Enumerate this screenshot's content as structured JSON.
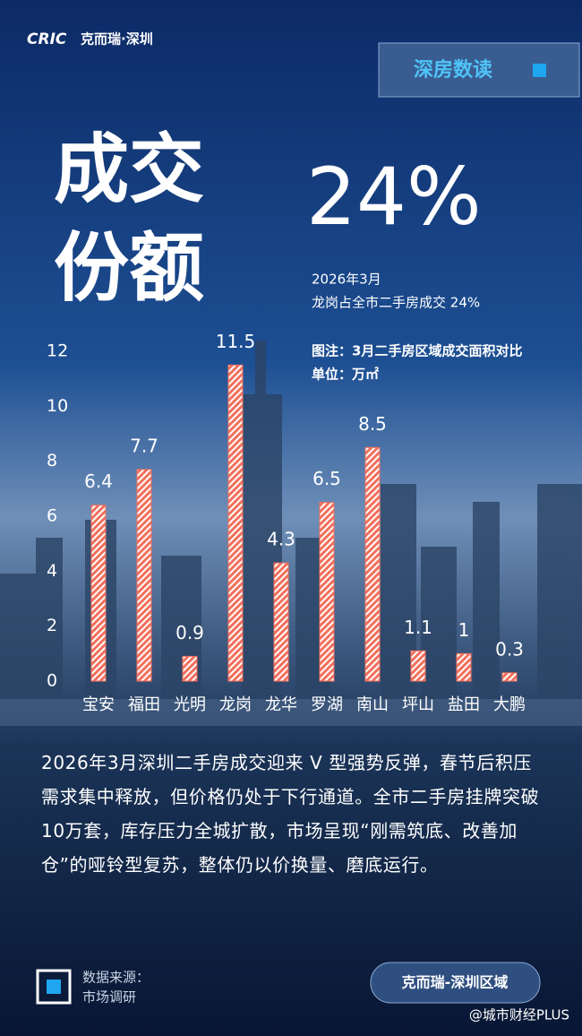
{
  "brand": {
    "logo": "CRIC",
    "name": "克而瑞·深圳"
  },
  "tag": "深房数读",
  "headline": {
    "line1": "成交",
    "line2": "份额",
    "figure": "24%",
    "date": "2026年3月",
    "caption": "龙岗占全市二手房成交 24%"
  },
  "chart_data": {
    "type": "bar",
    "note": "图注：3月二手房区域成交面积对比",
    "unit": "单位：万㎡",
    "categories": [
      "宝安",
      "福田",
      "光明",
      "龙岗",
      "龙华",
      "罗湖",
      "南山",
      "坪山",
      "盐田",
      "大鹏"
    ],
    "values": [
      6.4,
      7.7,
      0.9,
      11.5,
      4.3,
      6.5,
      8.5,
      1.1,
      1,
      0.3
    ],
    "color": "#f2705c",
    "ylim": [
      0,
      12
    ],
    "yticks": [
      0,
      2,
      4,
      6,
      8,
      10,
      12
    ],
    "grid": false
  },
  "body": "2026年3月深圳二手房成交迎来 V 型强势反弹，春节后积压需求集中释放，但价格仍处于下行通道。全市二手房挂牌突破10万套，库存压力全城扩散，市场呈现“刚需筑底、改善加仓”的哑铃型复苏，整体仍以价换量、磨底运行。",
  "footer": {
    "source_label": "数据来源：",
    "source": "市场调研",
    "button": "克而瑞-深圳区域",
    "watermark": "@城市财经PLUS"
  }
}
